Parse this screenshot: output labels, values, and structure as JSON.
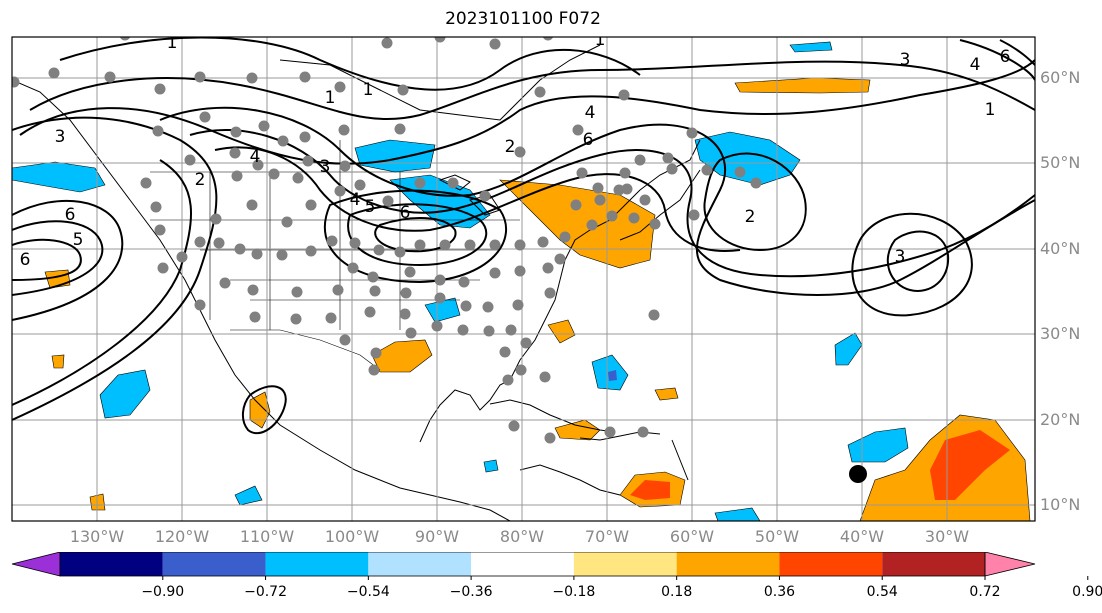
{
  "title": "2023101100 F072",
  "lon_labels": [
    "130°W",
    "120°W",
    "110°W",
    "100°W",
    "90°W",
    "80°W",
    "70°W",
    "60°W",
    "50°W",
    "40°W",
    "30°W"
  ],
  "lat_labels": [
    "60°N",
    "50°N",
    "40°N",
    "30°N",
    "20°N",
    "10°N"
  ],
  "contour_labels": [
    "1",
    "1",
    "1",
    "1",
    "1",
    "2",
    "2",
    "2",
    "3",
    "3",
    "3",
    "3",
    "4",
    "4",
    "4",
    "4",
    "5",
    "5",
    "6",
    "6",
    "6",
    "6",
    "6"
  ],
  "colorbar": {
    "ticks": [
      "−0.90",
      "−0.72",
      "−0.54",
      "−0.36",
      "−0.18",
      "0.18",
      "0.36",
      "0.54",
      "0.72",
      "0.90"
    ],
    "colors": [
      "#9b30d9",
      "#000080",
      "#3a5fcd",
      "#00bfff",
      "#b0e2ff",
      "#ffffff",
      "#ffe680",
      "#ffa500",
      "#ff4500",
      "#b22222",
      "#ff82ab"
    ]
  },
  "colors": {
    "positive": "#ffa500",
    "positive_strong": "#ff4500",
    "negative": "#00bfff",
    "dots": "#808080",
    "contours": "#000000"
  }
}
